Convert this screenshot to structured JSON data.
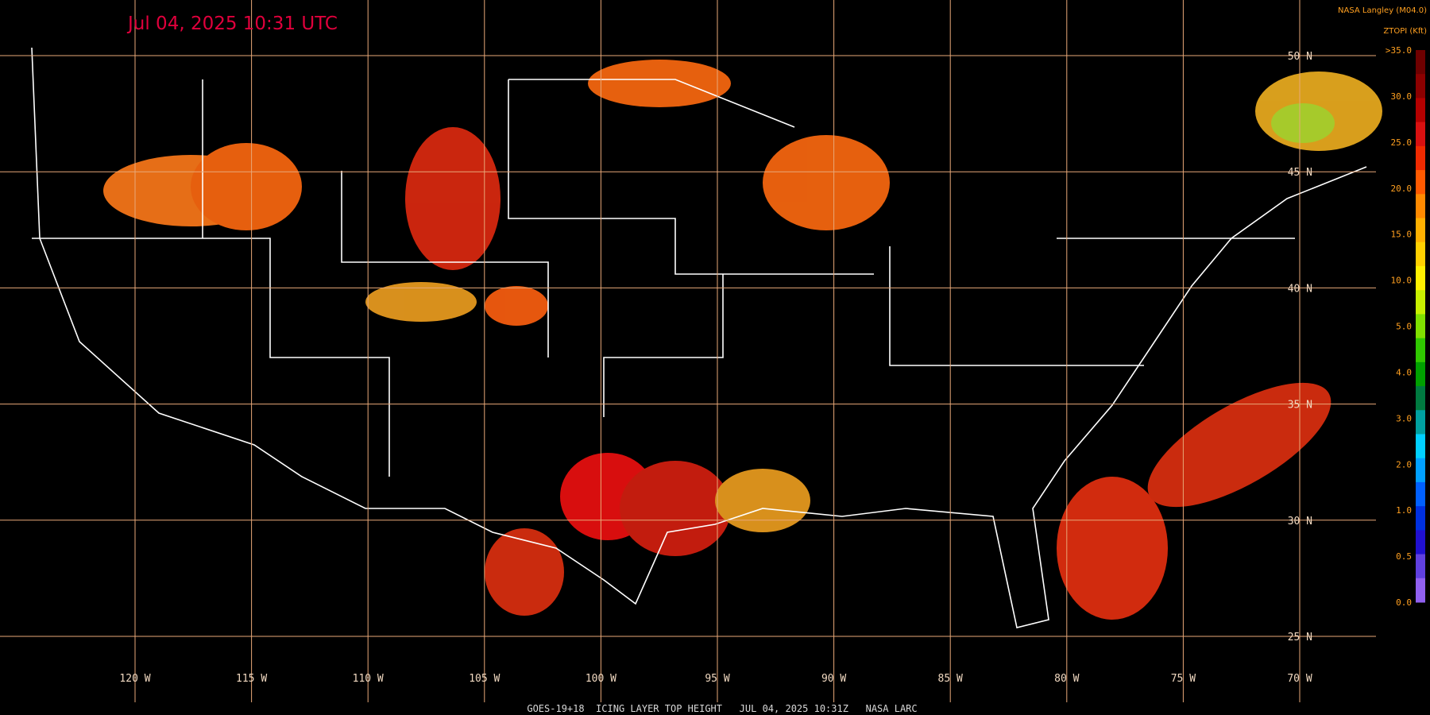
{
  "header": {
    "timestamp": "Jul 04, 2025 10:31 UTC",
    "source": "NASA Langley (M04.0)",
    "product": "ZTOPI (Kft)"
  },
  "colorbar": {
    "labels": [
      ">35.0",
      "30.0",
      "25.0",
      "20.0",
      "15.0",
      "10.0",
      "5.0",
      "4.0",
      "3.0",
      "2.0",
      "1.0",
      "0.5",
      "0.0"
    ],
    "colors": [
      "#6e0000",
      "#8c0000",
      "#b40000",
      "#d81010",
      "#f02a00",
      "#ff5a00",
      "#ff8a00",
      "#ffb000",
      "#ffd000",
      "#fff000",
      "#c8f000",
      "#80e000",
      "#30c800",
      "#00a000",
      "#007a40",
      "#00a0a0",
      "#00d0ff",
      "#00a0ff",
      "#0060ff",
      "#0030e0",
      "#2010d0",
      "#6040e0",
      "#9060f0"
    ]
  },
  "latitudes": [
    "50 N",
    "45 N",
    "40 N",
    "35 N",
    "30 N",
    "25 N"
  ],
  "longitudes": [
    "120 W",
    "115 W",
    "110 W",
    "105 W",
    "100 W",
    "95 W",
    "90 W",
    "85 W",
    "80 W",
    "75 W",
    "70 W"
  ],
  "footer": "GOES-19+18  ICING LAYER TOP HEIGHT   JUL 04, 2025 10:31Z   NASA LARC"
}
